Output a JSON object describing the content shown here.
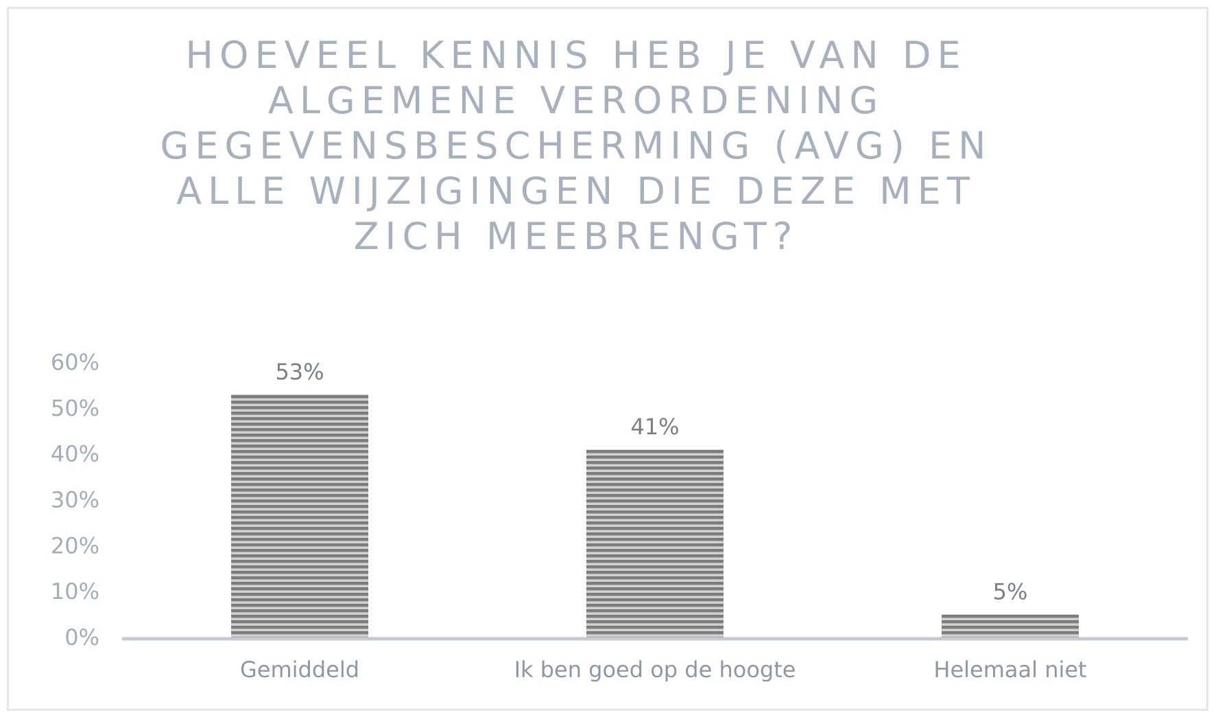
{
  "chart_data": {
    "type": "bar",
    "title_lines": [
      "HOEVEEL KENNIS HEB JE VAN DE",
      "ALGEMENE VERORDENING",
      "GEGEVENSBESCHERMING (AVG) EN",
      "ALLE WIJZIGINGEN DIE DEZE MET",
      "ZICH MEEBRENGT?"
    ],
    "categories": [
      "Gemiddeld",
      "Ik ben goed op de hoogte",
      "Helemaal niet"
    ],
    "values": [
      53,
      41,
      5
    ],
    "data_labels": [
      "53%",
      "41%",
      "5%"
    ],
    "ylim": [
      0,
      60
    ],
    "yticks": [
      0,
      10,
      20,
      30,
      40,
      50,
      60
    ],
    "ytick_labels": [
      "0%",
      "10%",
      "20%",
      "30%",
      "40%",
      "50%",
      "60%"
    ],
    "grid": false,
    "legend": "none",
    "colors": {
      "bar_dark": "#7d7d7d",
      "bar_light": "#d2d2d2",
      "axis": "#c6cbd3",
      "title": "#a7b0be"
    }
  }
}
